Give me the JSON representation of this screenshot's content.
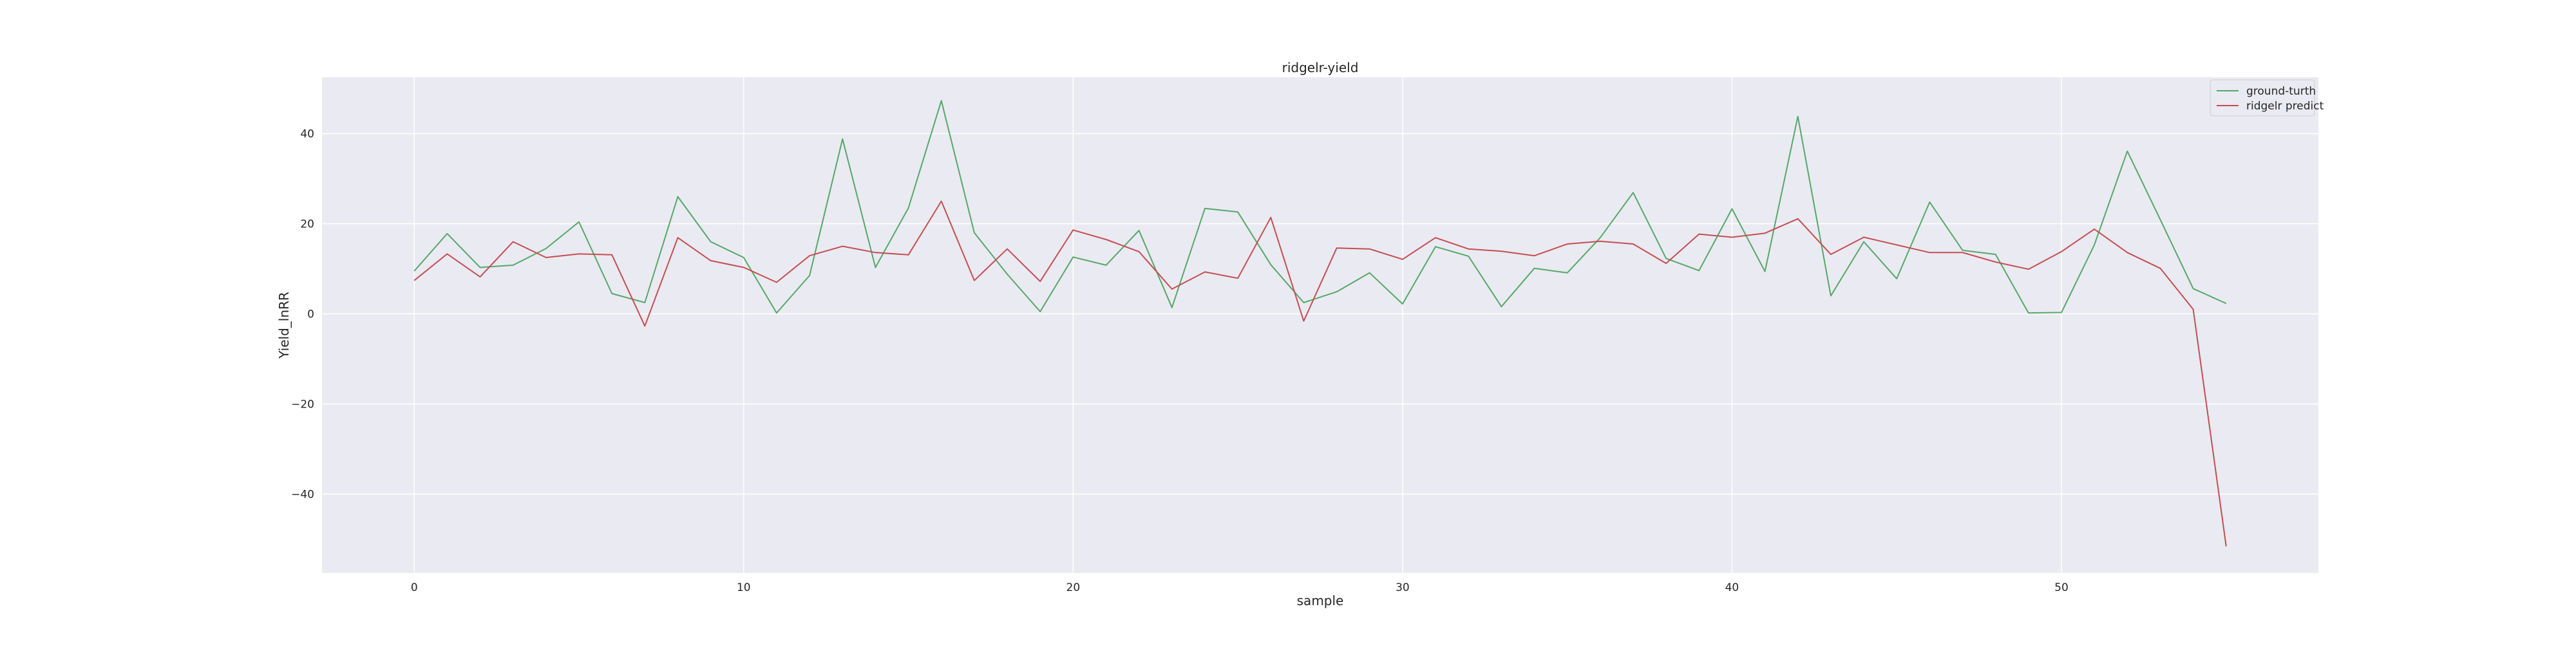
{
  "chart_data": {
    "type": "line",
    "title": "ridgelr-yield",
    "xlabel": "sample",
    "ylabel": "Yield_lnRR",
    "xlim": [
      -2.8,
      57.8
    ],
    "ylim": [
      -57.5,
      52.5
    ],
    "xticks": [
      0,
      10,
      20,
      30,
      40,
      50
    ],
    "yticks": [
      -40,
      -20,
      0,
      20,
      40
    ],
    "x": [
      0,
      1,
      2,
      3,
      4,
      5,
      6,
      7,
      8,
      9,
      10,
      11,
      12,
      13,
      14,
      15,
      16,
      17,
      18,
      19,
      20,
      21,
      22,
      23,
      24,
      25,
      26,
      27,
      28,
      29,
      30,
      31,
      32,
      33,
      34,
      35,
      36,
      37,
      38,
      39,
      40,
      41,
      42,
      43,
      44,
      45,
      46,
      47,
      48,
      49,
      50,
      51,
      52,
      53,
      54,
      55
    ],
    "series": [
      {
        "name": "ground-turth",
        "color": "#55a868",
        "values": [
          9.5,
          17.8,
          10.3,
          10.8,
          14.5,
          20.4,
          4.5,
          2.5,
          26.0,
          16.0,
          12.5,
          0.2,
          8.5,
          38.8,
          10.3,
          23.5,
          47.3,
          18.0,
          8.8,
          0.5,
          12.6,
          10.8,
          18.5,
          1.4,
          23.4,
          22.6,
          10.9,
          2.5,
          4.9,
          9.1,
          2.2,
          14.9,
          12.8,
          1.6,
          10.1,
          9.1,
          16.9,
          26.9,
          12.3,
          9.6,
          23.3,
          9.4,
          43.8,
          4.0,
          16.0,
          7.8,
          24.8,
          14.1,
          13.2,
          0.2,
          0.3,
          15.3,
          36.1,
          20.9,
          5.6,
          2.3
        ]
      },
      {
        "name": "ridgelr predict",
        "color": "#c44e52",
        "values": [
          7.4,
          13.3,
          8.2,
          16.0,
          12.5,
          13.3,
          13.1,
          -2.7,
          16.9,
          11.8,
          10.3,
          7.0,
          12.9,
          15.0,
          13.6,
          13.1,
          25.0,
          7.4,
          14.4,
          7.2,
          18.6,
          16.5,
          13.8,
          5.5,
          9.3,
          7.9,
          21.4,
          -1.6,
          14.6,
          14.4,
          12.1,
          16.9,
          14.4,
          13.9,
          12.9,
          15.5,
          16.1,
          15.5,
          11.2,
          17.7,
          17.0,
          17.9,
          21.1,
          13.2,
          17.0,
          15.3,
          13.6,
          13.6,
          11.5,
          9.9,
          13.8,
          18.8,
          13.6,
          10.1,
          1.0,
          -51.6
        ]
      }
    ],
    "grid": true,
    "legend_position": "top-right"
  }
}
